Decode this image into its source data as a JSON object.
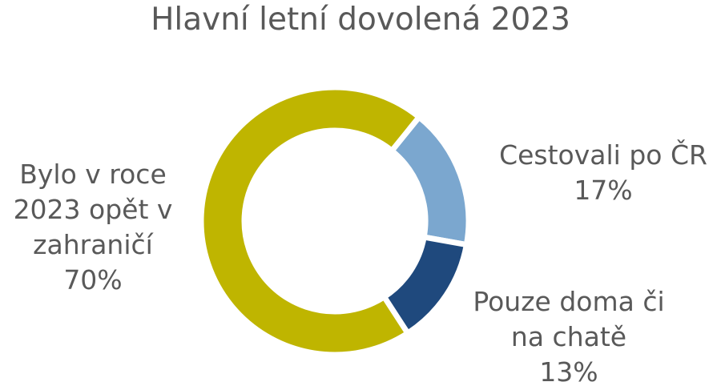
{
  "chart_data": {
    "type": "pie",
    "variant": "donut",
    "title": "Hlavní letní dovolená 2023",
    "slices": [
      {
        "label": "Cestovali po ČR",
        "value": 17,
        "value_label": "17%",
        "color": "#7BA7CF"
      },
      {
        "label": "Pouze doma či na chatě",
        "value": 13,
        "value_label": "13%",
        "color": "#1F497D"
      },
      {
        "label": "Bylo v roce 2023 opět v zahraničí",
        "value": 70,
        "value_label": "70%",
        "color": "#BFB500"
      }
    ],
    "legend": "none",
    "data_labels": "outside"
  }
}
